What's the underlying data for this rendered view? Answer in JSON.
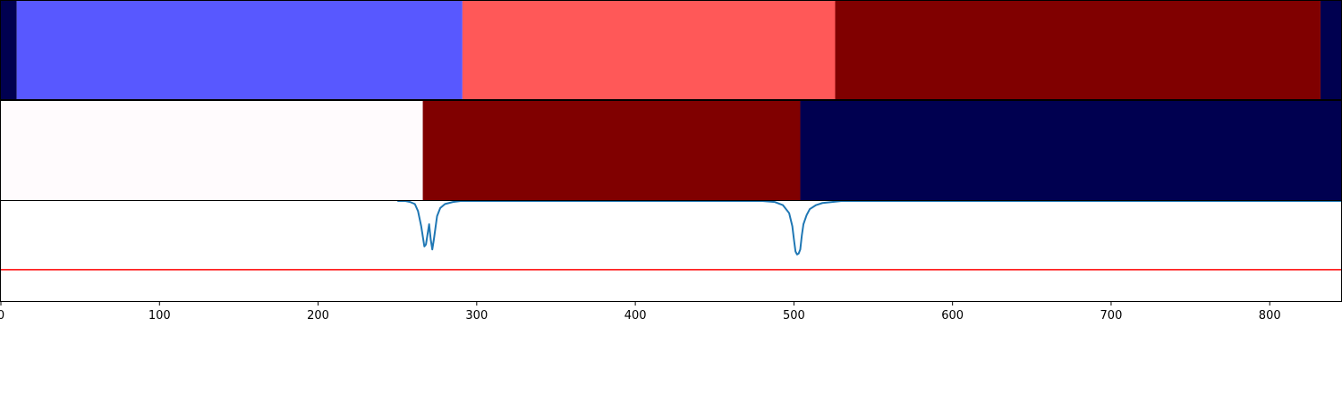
{
  "chart_data": {
    "type": "segmentation-with-line",
    "x_axis": {
      "xlim": [
        0,
        845
      ],
      "ticks": [
        0,
        100,
        200,
        300,
        400,
        500,
        600,
        700,
        800
      ],
      "tick_labels": [
        "0",
        "100",
        "200",
        "300",
        "400",
        "500",
        "600",
        "700",
        "800"
      ]
    },
    "colors": {
      "navy": "#000050",
      "blue": "#5858ff",
      "salmon": "#ff5858",
      "dark_red": "#800000",
      "near_white": "#fffbfd",
      "line": "#1f77b4",
      "threshold": "#ff0000"
    },
    "panels": [
      {
        "segments": [
          {
            "start": 0,
            "end": 10,
            "color": "#000050"
          },
          {
            "start": 10,
            "end": 291,
            "color": "#5858ff"
          },
          {
            "start": 291,
            "end": 526,
            "color": "#ff5858"
          },
          {
            "start": 526,
            "end": 832,
            "color": "#800000"
          },
          {
            "start": 832,
            "end": 845,
            "color": "#000050"
          }
        ]
      },
      {
        "segments": [
          {
            "start": 0,
            "end": 266,
            "color": "#fffbfd"
          },
          {
            "start": 266,
            "end": 504,
            "color": "#800000"
          },
          {
            "start": 504,
            "end": 845,
            "color": "#000050"
          }
        ]
      }
    ],
    "line_panel": {
      "ylim": [
        0,
        1
      ],
      "threshold": 0.32,
      "series": [
        {
          "x": [
            250,
            255,
            258,
            261,
            263,
            265,
            267,
            268,
            269,
            270,
            271,
            272,
            273,
            275,
            277,
            280,
            285,
            290,
            300,
            480,
            488,
            493,
            497,
            499,
            500,
            501,
            502,
            503,
            504,
            505,
            506,
            508,
            510,
            514,
            518,
            524,
            530,
            600,
            845
          ],
          "y": [
            1.0,
            1.0,
            0.99,
            0.97,
            0.9,
            0.75,
            0.55,
            0.57,
            0.67,
            0.77,
            0.62,
            0.52,
            0.62,
            0.85,
            0.93,
            0.97,
            0.99,
            1.0,
            1.0,
            1.0,
            0.99,
            0.96,
            0.88,
            0.75,
            0.62,
            0.5,
            0.47,
            0.48,
            0.52,
            0.66,
            0.77,
            0.86,
            0.92,
            0.96,
            0.98,
            0.99,
            1.0,
            1.0,
            1.0
          ]
        }
      ]
    }
  }
}
